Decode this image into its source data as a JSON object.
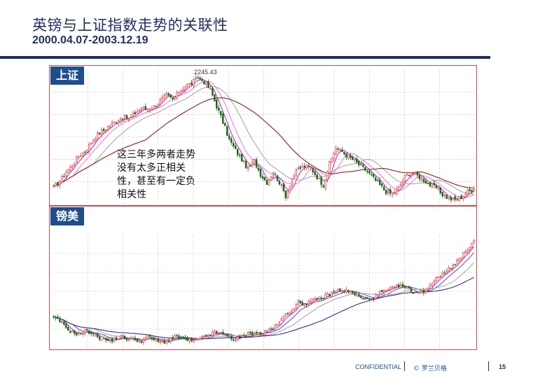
{
  "slide": {
    "title": "英镑与上证指数走势的关联性",
    "subtitle": "2000.04.07-2003.12.19"
  },
  "footer": {
    "confidential": "CONFIDENTIAL",
    "copyright": "© 罗兰贝格",
    "page_number": "15"
  },
  "colors": {
    "navy": "#1f2f5c",
    "label_bg": "#1f4e8c",
    "frame": "#c0504d",
    "up_candle": "#d94040",
    "down_candle": "#1a6b1a",
    "ma_fast": "#c000c0",
    "ma_mid": "#4040c0",
    "ma_slow_sh": "#8b2020",
    "ma_slow_gbp": "#303090",
    "ma_grey": "#a0a0a0"
  },
  "chart_data": [
    {
      "type": "candlestick",
      "title": "上证",
      "annotation": "这三年多两者走势\n没有太多正相关\n性，甚至有一定负\n相关性",
      "peak_label": "2245.43",
      "grid": true,
      "moving_averages": 4,
      "close_series": [
        1420,
        1470,
        1540,
        1590,
        1660,
        1690,
        1760,
        1820,
        1850,
        1890,
        1920,
        1950,
        1930,
        1980,
        2020,
        2000,
        2030,
        2070,
        2110,
        2080,
        2140,
        2180,
        2200,
        2245,
        2210,
        2150,
        2030,
        1910,
        1780,
        1700,
        1630,
        1560,
        1620,
        1520,
        1460,
        1540,
        1460,
        1360,
        1490,
        1560,
        1580,
        1570,
        1500,
        1440,
        1600,
        1720,
        1690,
        1650,
        1620,
        1580,
        1540,
        1490,
        1440,
        1390,
        1370,
        1420,
        1500,
        1540,
        1510,
        1480,
        1440,
        1420,
        1370,
        1340,
        1330,
        1350,
        1390,
        1410
      ],
      "ylim": [
        1300,
        2300
      ]
    },
    {
      "type": "candlestick",
      "title": "镑美",
      "grid": true,
      "moving_averages": 4,
      "close_series": [
        1.505,
        1.495,
        1.47,
        1.455,
        1.45,
        1.46,
        1.455,
        1.44,
        1.43,
        1.425,
        1.435,
        1.44,
        1.43,
        1.43,
        1.425,
        1.44,
        1.43,
        1.42,
        1.425,
        1.435,
        1.44,
        1.43,
        1.425,
        1.43,
        1.44,
        1.45,
        1.455,
        1.445,
        1.44,
        1.43,
        1.44,
        1.45,
        1.455,
        1.45,
        1.46,
        1.47,
        1.49,
        1.52,
        1.535,
        1.56,
        1.555,
        1.565,
        1.57,
        1.58,
        1.59,
        1.6,
        1.605,
        1.6,
        1.59,
        1.575,
        1.57,
        1.58,
        1.595,
        1.6,
        1.61,
        1.62,
        1.615,
        1.6,
        1.595,
        1.6,
        1.62,
        1.65,
        1.66,
        1.68,
        1.7,
        1.72,
        1.75,
        1.78
      ],
      "ylim": [
        1.4,
        1.8
      ]
    }
  ]
}
